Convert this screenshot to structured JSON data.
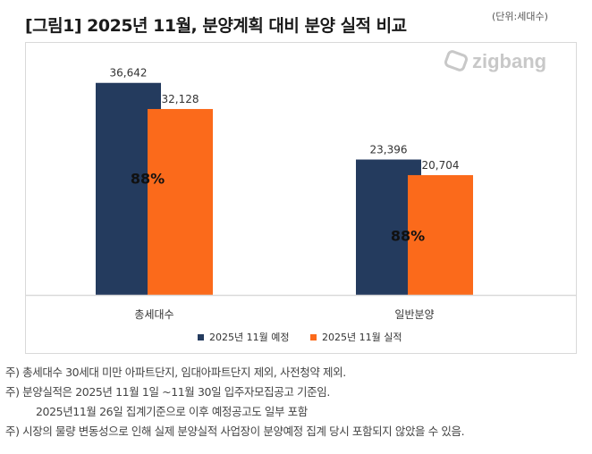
{
  "title": "[그림1] 2025년 11월, 분양계획 대비 분양 실적 비교",
  "unit": "(단위:세대수)",
  "logo": "zigbang",
  "chart_data": {
    "type": "bar",
    "title": "[그림1] 2025년 11월, 분양계획 대비 분양 실적 비교",
    "categories": [
      "총세대수",
      "일반분양"
    ],
    "series": [
      {
        "name": "2025년 11월 예정",
        "color": "#243b5e",
        "values": [
          36642,
          23396
        ],
        "labels": [
          "36,642",
          "23,396"
        ]
      },
      {
        "name": "2025년 11월 실적",
        "color": "#fb6a1b",
        "values": [
          32128,
          20704
        ],
        "labels": [
          "32,128",
          "20,704"
        ]
      }
    ],
    "ratios": [
      "88%",
      "88%"
    ],
    "ylim": [
      0,
      40000
    ],
    "grid": false,
    "legend": "bottom",
    "xlabel": "",
    "ylabel": ""
  },
  "notes": [
    "주) 총세대수 30세대 미만 아파트단지, 임대아파트단지 제외, 사전청약 제외.",
    "주) 분양실적은 2025년 11월 1일 ~11월 30일 입주자모집공고 기준임.",
    "2025년11월 26일 집계기준으로 이후 예정공고도 일부 포함",
    "주) 시장의 물량 변동성으로 인해 실제 분양실적 사업장이 분양예정 집계 당시 포함되지 않았을 수 있음."
  ]
}
